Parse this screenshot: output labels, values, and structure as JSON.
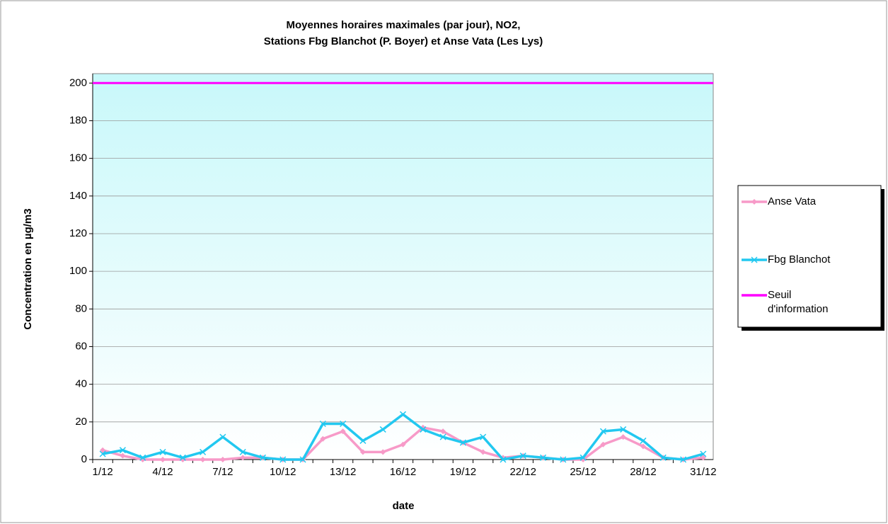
{
  "chart_data": {
    "type": "line",
    "title": [
      "Moyennes horaires maximales (par jour), NO2,",
      "Stations Fbg Blanchot (P. Boyer) et Anse Vata (Les Lys)"
    ],
    "x_label": "date",
    "y_label": "Concentration en µg/m3",
    "categories": [
      "1/12",
      null,
      null,
      "4/12",
      null,
      null,
      "7/12",
      null,
      null,
      "10/12",
      null,
      null,
      "13/12",
      null,
      null,
      "16/12",
      null,
      null,
      "19/12",
      null,
      null,
      "22/12",
      null,
      null,
      "25/12",
      null,
      null,
      "28/12",
      null,
      null,
      "31/12"
    ],
    "series": [
      {
        "name": "Anse Vata",
        "color": "#f79ac8",
        "marker": "diamond",
        "values": [
          5,
          2,
          0,
          0,
          0,
          0,
          0,
          1,
          1,
          0,
          0,
          11,
          15,
          4,
          4,
          8,
          17,
          15,
          9,
          4,
          1,
          2,
          1,
          0,
          0,
          8,
          12,
          7,
          1,
          0,
          1
        ]
      },
      {
        "name": "Fbg Blanchot",
        "color": "#22c8f0",
        "marker": "x",
        "values": [
          3,
          5,
          1,
          4,
          1,
          4,
          12,
          4,
          1,
          0,
          0,
          19,
          19,
          10,
          16,
          24,
          16,
          12,
          9,
          12,
          0,
          2,
          1,
          0,
          1,
          15,
          16,
          10,
          1,
          0,
          3
        ]
      }
    ],
    "threshold": {
      "name": "Seuil d'information",
      "value": 200,
      "color": "#ff00ff"
    },
    "ylim": [
      0,
      205
    ],
    "yticks": [
      0,
      20,
      40,
      60,
      80,
      100,
      120,
      140,
      160,
      180,
      200
    ],
    "grid": true
  }
}
